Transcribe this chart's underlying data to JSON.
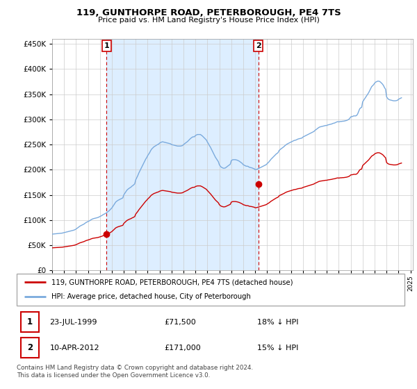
{
  "title": "119, GUNTHORPE ROAD, PETERBOROUGH, PE4 7TS",
  "subtitle": "Price paid vs. HM Land Registry's House Price Index (HPI)",
  "legend_line1": "119, GUNTHORPE ROAD, PETERBOROUGH, PE4 7TS (detached house)",
  "legend_line2": "HPI: Average price, detached house, City of Peterborough",
  "annotation1_label": "1",
  "annotation1_date": "23-JUL-1999",
  "annotation1_price": "£71,500",
  "annotation1_hpi": "18% ↓ HPI",
  "annotation1_year": 1999.55,
  "annotation1_value": 71500,
  "annotation2_label": "2",
  "annotation2_date": "10-APR-2012",
  "annotation2_price": "£171,000",
  "annotation2_hpi": "15% ↓ HPI",
  "annotation2_year": 2012.27,
  "annotation2_value": 171000,
  "price_color": "#cc0000",
  "hpi_color": "#7aaadd",
  "shade_color": "#ddeeff",
  "background_color": "#ffffff",
  "grid_color": "#cccccc",
  "ylim": [
    0,
    460000
  ],
  "yticks": [
    0,
    50000,
    100000,
    150000,
    200000,
    250000,
    300000,
    350000,
    400000,
    450000
  ],
  "footer": "Contains HM Land Registry data © Crown copyright and database right 2024.\nThis data is licensed under the Open Government Licence v3.0.",
  "hpi_data": {
    "years": [
      1995.0,
      1995.083,
      1995.167,
      1995.25,
      1995.333,
      1995.417,
      1995.5,
      1995.583,
      1995.667,
      1995.75,
      1995.833,
      1995.917,
      1996.0,
      1996.083,
      1996.167,
      1996.25,
      1996.333,
      1996.417,
      1996.5,
      1996.583,
      1996.667,
      1996.75,
      1996.833,
      1996.917,
      1997.0,
      1997.083,
      1997.167,
      1997.25,
      1997.333,
      1997.417,
      1997.5,
      1997.583,
      1997.667,
      1997.75,
      1997.833,
      1997.917,
      1998.0,
      1998.083,
      1998.167,
      1998.25,
      1998.333,
      1998.417,
      1998.5,
      1998.583,
      1998.667,
      1998.75,
      1998.833,
      1998.917,
      1999.0,
      1999.083,
      1999.167,
      1999.25,
      1999.333,
      1999.417,
      1999.5,
      1999.583,
      1999.667,
      1999.75,
      1999.833,
      1999.917,
      2000.0,
      2000.083,
      2000.167,
      2000.25,
      2000.333,
      2000.417,
      2000.5,
      2000.583,
      2000.667,
      2000.75,
      2000.833,
      2000.917,
      2001.0,
      2001.083,
      2001.167,
      2001.25,
      2001.333,
      2001.417,
      2001.5,
      2001.583,
      2001.667,
      2001.75,
      2001.833,
      2001.917,
      2002.0,
      2002.083,
      2002.167,
      2002.25,
      2002.333,
      2002.417,
      2002.5,
      2002.583,
      2002.667,
      2002.75,
      2002.833,
      2002.917,
      2003.0,
      2003.083,
      2003.167,
      2003.25,
      2003.333,
      2003.417,
      2003.5,
      2003.583,
      2003.667,
      2003.75,
      2003.833,
      2003.917,
      2004.0,
      2004.083,
      2004.167,
      2004.25,
      2004.333,
      2004.417,
      2004.5,
      2004.583,
      2004.667,
      2004.75,
      2004.833,
      2004.917,
      2005.0,
      2005.083,
      2005.167,
      2005.25,
      2005.333,
      2005.417,
      2005.5,
      2005.583,
      2005.667,
      2005.75,
      2005.833,
      2005.917,
      2006.0,
      2006.083,
      2006.167,
      2006.25,
      2006.333,
      2006.417,
      2006.5,
      2006.583,
      2006.667,
      2006.75,
      2006.833,
      2006.917,
      2007.0,
      2007.083,
      2007.167,
      2007.25,
      2007.333,
      2007.417,
      2007.5,
      2007.583,
      2007.667,
      2007.75,
      2007.833,
      2007.917,
      2008.0,
      2008.083,
      2008.167,
      2008.25,
      2008.333,
      2008.417,
      2008.5,
      2008.583,
      2008.667,
      2008.75,
      2008.833,
      2008.917,
      2009.0,
      2009.083,
      2009.167,
      2009.25,
      2009.333,
      2009.417,
      2009.5,
      2009.583,
      2009.667,
      2009.75,
      2009.833,
      2009.917,
      2010.0,
      2010.083,
      2010.167,
      2010.25,
      2010.333,
      2010.417,
      2010.5,
      2010.583,
      2010.667,
      2010.75,
      2010.833,
      2010.917,
      2011.0,
      2011.083,
      2011.167,
      2011.25,
      2011.333,
      2011.417,
      2011.5,
      2011.583,
      2011.667,
      2011.75,
      2011.833,
      2011.917,
      2012.0,
      2012.083,
      2012.167,
      2012.25,
      2012.333,
      2012.417,
      2012.5,
      2012.583,
      2012.667,
      2012.75,
      2012.833,
      2012.917,
      2013.0,
      2013.083,
      2013.167,
      2013.25,
      2013.333,
      2013.417,
      2013.5,
      2013.583,
      2013.667,
      2013.75,
      2013.833,
      2013.917,
      2014.0,
      2014.083,
      2014.167,
      2014.25,
      2014.333,
      2014.417,
      2014.5,
      2014.583,
      2014.667,
      2014.75,
      2014.833,
      2014.917,
      2015.0,
      2015.083,
      2015.167,
      2015.25,
      2015.333,
      2015.417,
      2015.5,
      2015.583,
      2015.667,
      2015.75,
      2015.833,
      2015.917,
      2016.0,
      2016.083,
      2016.167,
      2016.25,
      2016.333,
      2016.417,
      2016.5,
      2016.583,
      2016.667,
      2016.75,
      2016.833,
      2016.917,
      2017.0,
      2017.083,
      2017.167,
      2017.25,
      2017.333,
      2017.417,
      2017.5,
      2017.583,
      2017.667,
      2017.75,
      2017.833,
      2017.917,
      2018.0,
      2018.083,
      2018.167,
      2018.25,
      2018.333,
      2018.417,
      2018.5,
      2018.583,
      2018.667,
      2018.75,
      2018.833,
      2018.917,
      2019.0,
      2019.083,
      2019.167,
      2019.25,
      2019.333,
      2019.417,
      2019.5,
      2019.583,
      2019.667,
      2019.75,
      2019.833,
      2019.917,
      2020.0,
      2020.083,
      2020.167,
      2020.25,
      2020.333,
      2020.417,
      2020.5,
      2020.583,
      2020.667,
      2020.75,
      2020.833,
      2020.917,
      2021.0,
      2021.083,
      2021.167,
      2021.25,
      2021.333,
      2021.417,
      2021.5,
      2021.583,
      2021.667,
      2021.75,
      2021.833,
      2021.917,
      2022.0,
      2022.083,
      2022.167,
      2022.25,
      2022.333,
      2022.417,
      2022.5,
      2022.583,
      2022.667,
      2022.75,
      2022.833,
      2022.917,
      2023.0,
      2023.083,
      2023.167,
      2023.25,
      2023.333,
      2023.417,
      2023.5,
      2023.583,
      2023.667,
      2023.75,
      2023.833,
      2023.917,
      2024.0,
      2024.083,
      2024.167,
      2024.25
    ],
    "values": [
      72000,
      72200,
      72400,
      72600,
      72800,
      73000,
      73200,
      73400,
      73600,
      73800,
      74000,
      74500,
      75000,
      75500,
      76000,
      76500,
      77000,
      77500,
      78000,
      78500,
      79000,
      79500,
      80000,
      81000,
      82000,
      83500,
      85000,
      86500,
      88000,
      89000,
      90000,
      91000,
      92000,
      93500,
      95000,
      96000,
      97000,
      98000,
      99000,
      100500,
      101500,
      102500,
      103000,
      103500,
      104000,
      104500,
      105000,
      106000,
      107000,
      108000,
      109000,
      110500,
      111500,
      112500,
      113500,
      115000,
      116500,
      118000,
      120000,
      122000,
      124000,
      127000,
      130000,
      133000,
      136000,
      137500,
      139000,
      140000,
      141000,
      142000,
      143000,
      144000,
      150000,
      153000,
      156000,
      159000,
      161000,
      162500,
      164000,
      165000,
      167000,
      168500,
      170000,
      172000,
      180000,
      184000,
      188000,
      193000,
      197000,
      201000,
      205000,
      209000,
      213000,
      217000,
      221000,
      224000,
      228000,
      231000,
      234000,
      238000,
      241000,
      243000,
      245000,
      246500,
      247500,
      249000,
      250000,
      251000,
      253000,
      254000,
      255000,
      255500,
      255000,
      254500,
      254000,
      253500,
      253000,
      252500,
      252000,
      251500,
      250000,
      249500,
      249000,
      248500,
      248000,
      247500,
      247000,
      247000,
      247000,
      247000,
      247500,
      248000,
      250000,
      251500,
      253000,
      254500,
      256000,
      258000,
      260000,
      262000,
      263500,
      265000,
      265500,
      265500,
      268000,
      269000,
      270000,
      270000,
      270000,
      270000,
      268500,
      267000,
      265000,
      263000,
      261000,
      259000,
      255000,
      252000,
      248000,
      245000,
      241000,
      237000,
      233000,
      229000,
      225000,
      222000,
      219000,
      216000,
      210000,
      207000,
      205000,
      204000,
      203000,
      203000,
      203500,
      205000,
      206500,
      208000,
      209500,
      211000,
      218000,
      219500,
      220000,
      220000,
      220000,
      219500,
      219000,
      218000,
      217000,
      215500,
      214000,
      212500,
      210000,
      209000,
      208000,
      207000,
      207000,
      206500,
      205000,
      204500,
      204000,
      203500,
      202500,
      202000,
      200000,
      200500,
      201000,
      202000,
      203000,
      204000,
      205000,
      206000,
      207000,
      208000,
      209000,
      210000,
      212000,
      214000,
      216000,
      218500,
      221000,
      223000,
      225000,
      227000,
      229000,
      231000,
      232500,
      234000,
      238000,
      240000,
      241500,
      243000,
      244500,
      246000,
      248000,
      249500,
      251000,
      252000,
      253000,
      254000,
      255000,
      256000,
      257000,
      258000,
      258500,
      259000,
      260000,
      261000,
      261500,
      262000,
      262500,
      263000,
      265000,
      266000,
      267000,
      268000,
      269000,
      270000,
      271000,
      272000,
      273000,
      274000,
      275000,
      276000,
      278000,
      279500,
      281000,
      282500,
      284000,
      285000,
      285500,
      286000,
      286500,
      287000,
      287500,
      288000,
      288000,
      289000,
      289500,
      290000,
      290500,
      291000,
      292000,
      292500,
      293000,
      294000,
      295000,
      295500,
      295000,
      295500,
      296000,
      296000,
      296500,
      296500,
      297000,
      297500,
      298000,
      299000,
      300000,
      302000,
      305000,
      305500,
      306000,
      307000,
      307000,
      307000,
      308000,
      311000,
      316000,
      321000,
      323000,
      324000,
      335000,
      338000,
      341000,
      344000,
      347000,
      350000,
      353000,
      357000,
      361000,
      365000,
      367000,
      369000,
      372000,
      374000,
      375000,
      376000,
      376000,
      375500,
      374000,
      372000,
      370000,
      367000,
      363000,
      360000,
      345000,
      342000,
      340000,
      339000,
      338500,
      338000,
      337500,
      337000,
      337000,
      337000,
      337500,
      338000,
      340000,
      341000,
      342000,
      343000
    ]
  }
}
